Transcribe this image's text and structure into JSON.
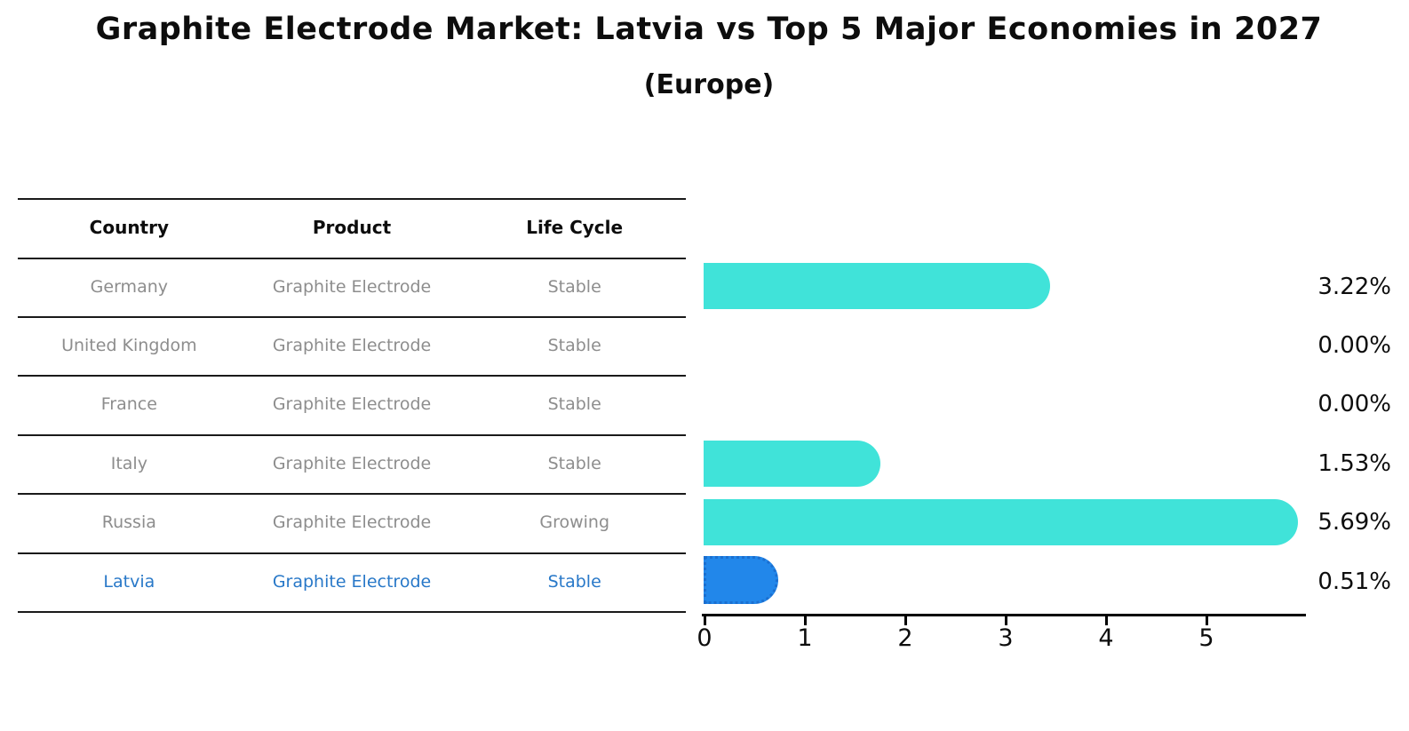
{
  "page": {
    "background": "#ffffff"
  },
  "chart_data": {
    "type": "bar",
    "orientation": "horizontal",
    "title": "Graphite Electrode Market: Latvia vs Top 5 Major Economies in 2027",
    "subtitle": "(Europe)",
    "categories": [
      "Germany",
      "United Kingdom",
      "France",
      "Italy",
      "Russia",
      "Latvia"
    ],
    "values": [
      3.22,
      0.0,
      0.0,
      1.53,
      5.69,
      0.51
    ],
    "value_labels": [
      "3.22%",
      "0.00%",
      "0.00%",
      "1.53%",
      "5.69%",
      "0.51%"
    ],
    "unit": "%",
    "x_ticks": [
      "0",
      "1",
      "2",
      "3",
      "4",
      "5"
    ],
    "xlim": [
      0,
      5.98
    ],
    "grid": false,
    "legend": false,
    "bar_color_default": "#40e3d9",
    "bar_color_highlight": "#2287ea",
    "highlight_category": "Latvia",
    "bar_colors": [
      "#40e3d9",
      "#40e3d9",
      "#40e3d9",
      "#40e3d9",
      "#40e3d9",
      "#2287ea"
    ]
  },
  "table": {
    "headers": [
      "Country",
      "Product",
      "Life Cycle"
    ],
    "rows": [
      {
        "country": "Germany",
        "product": "Graphite Electrode",
        "life_cycle": "Stable"
      },
      {
        "country": "United Kingdom",
        "product": "Graphite Electrode",
        "life_cycle": "Stable"
      },
      {
        "country": "France",
        "product": "Graphite Electrode",
        "life_cycle": "Stable"
      },
      {
        "country": "Italy",
        "product": "Graphite Electrode",
        "life_cycle": "Stable"
      },
      {
        "country": "Russia",
        "product": "Graphite Electrode",
        "life_cycle": "Growing"
      },
      {
        "country": "Latvia",
        "product": "Graphite Electrode",
        "life_cycle": "Stable"
      }
    ],
    "highlight_row": "Latvia",
    "text_color": "#8d8d8d",
    "highlight_text_color": "#2878c8",
    "rule_color": "#1a1a1a"
  }
}
